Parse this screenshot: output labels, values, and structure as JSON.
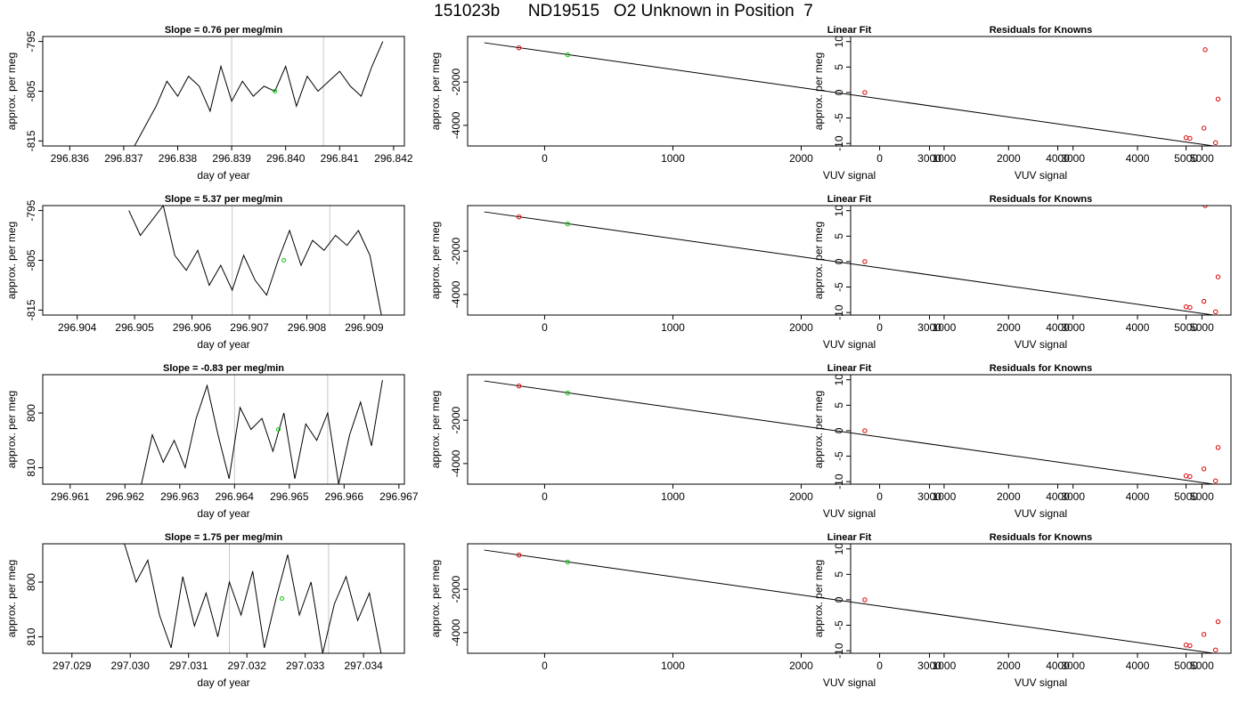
{
  "figure": {
    "title": "151023b      ND19515   O2 Unknown in Position  7"
  },
  "chart_data": [
    {
      "type": "line",
      "title": "Slope =  0.76  per meg/min",
      "xlabel": "day of year",
      "ylabel": "approx. per meg",
      "xlim": [
        296.8355,
        296.8422
      ],
      "ylim": [
        -816,
        -794
      ],
      "xticks": [
        "296.836",
        "296.837",
        "296.838",
        "296.839",
        "296.840",
        "296.841",
        "296.842"
      ],
      "yticks": [
        "-795",
        "-805",
        "-815"
      ],
      "vlines": [
        296.839,
        296.8407
      ],
      "marker": [
        296.8398,
        -805.0
      ],
      "series": [
        {
          "x": [
            296.8372,
            296.8374,
            296.8376,
            296.8378,
            296.838,
            296.8382,
            296.8384,
            296.8386,
            296.8388,
            296.839,
            296.8392,
            296.8394,
            296.8396,
            296.8398,
            296.84,
            296.8402,
            296.8404,
            296.8406,
            296.8408,
            296.841,
            296.8412,
            296.8414,
            296.8416,
            296.8418
          ],
          "y": [
            -816,
            -812,
            -808,
            -803,
            -806,
            -802,
            -804,
            -809,
            -800,
            -807,
            -803,
            -806,
            -804,
            -805,
            -800,
            -808,
            -802,
            -805,
            -803,
            -801,
            -804,
            -806,
            -800,
            -795
          ]
        }
      ]
    },
    {
      "type": "scatter",
      "title": "Linear Fit",
      "xlabel": "VUV signal",
      "ylabel": "approx. per meg",
      "xlim": [
        -600,
        5350
      ],
      "ylim": [
        -4950,
        100
      ],
      "xticks": [
        "0",
        "1000",
        "2000",
        "3000",
        "4000",
        "5000"
      ],
      "yticks": [
        "-2000",
        "-4000"
      ],
      "line": [
        [
          -470,
          -190
        ],
        [
          5250,
          -4980
        ]
      ],
      "points": [
        [
          -200,
          -420,
          "red"
        ],
        [
          180,
          -745,
          "green"
        ],
        [
          5000,
          -4570,
          "red"
        ],
        [
          5030,
          -4600,
          "red"
        ],
        [
          5230,
          -4800,
          "red"
        ]
      ]
    },
    {
      "type": "scatter",
      "title": "Residuals for Knowns",
      "xlabel": "VUV signal",
      "ylabel": "approx. per meg",
      "xlim": [
        -450,
        5450
      ],
      "ylim": [
        -10.5,
        11
      ],
      "xticks": [
        "0",
        "1000",
        "2000",
        "3000",
        "4000",
        "5000"
      ],
      "yticks": [
        "-10",
        "-5",
        "0",
        "5",
        "10"
      ],
      "points": [
        [
          -230,
          0.0
        ],
        [
          5030,
          -7.0
        ],
        [
          5050,
          8.4
        ],
        [
          5250,
          -1.3
        ]
      ]
    },
    {
      "type": "line",
      "title": "Slope =  5.37  per meg/min",
      "xlabel": "day of year",
      "ylabel": "approx. per meg",
      "xlim": [
        296.9034,
        296.9097
      ],
      "ylim": [
        -816,
        -794
      ],
      "xticks": [
        "296.904",
        "296.905",
        "296.906",
        "296.907",
        "296.908",
        "296.909"
      ],
      "yticks": [
        "-795",
        "-805",
        "-815"
      ],
      "vlines": [
        296.9067,
        296.9084
      ],
      "marker": [
        296.9076,
        -805.0
      ],
      "series": [
        {
          "x": [
            296.9049,
            296.9051,
            296.9053,
            296.9055,
            296.9057,
            296.9059,
            296.9061,
            296.9063,
            296.9065,
            296.9067,
            296.9069,
            296.9071,
            296.9073,
            296.9075,
            296.9077,
            296.9079,
            296.9081,
            296.9083,
            296.9085,
            296.9087,
            296.9089,
            296.9091,
            296.9093
          ],
          "y": [
            -795,
            -800,
            -797,
            -794,
            -804,
            -807,
            -803,
            -810,
            -806,
            -811,
            -804,
            -809,
            -812,
            -805,
            -799,
            -806,
            -801,
            -803,
            -800,
            -802,
            -799,
            -804,
            -816
          ]
        }
      ]
    },
    {
      "type": "scatter",
      "title": "Linear Fit",
      "xlabel": "VUV signal",
      "ylabel": "approx. per meg",
      "xlim": [
        -600,
        5350
      ],
      "ylim": [
        -4950,
        100
      ],
      "xticks": [
        "0",
        "1000",
        "2000",
        "3000",
        "4000",
        "5000"
      ],
      "yticks": [
        "-2000",
        "-4000"
      ],
      "line": [
        [
          -470,
          -190
        ],
        [
          5250,
          -4980
        ]
      ],
      "points": [
        [
          -200,
          -420,
          "red"
        ],
        [
          180,
          -745,
          "green"
        ],
        [
          5000,
          -4570,
          "red"
        ],
        [
          5030,
          -4600,
          "red"
        ],
        [
          5230,
          -4800,
          "red"
        ]
      ]
    },
    {
      "type": "scatter",
      "title": "Residuals for Knowns",
      "xlabel": "VUV signal",
      "ylabel": "approx. per meg",
      "xlim": [
        -450,
        5450
      ],
      "ylim": [
        -10.5,
        11
      ],
      "xticks": [
        "0",
        "1000",
        "2000",
        "3000",
        "4000",
        "5000"
      ],
      "yticks": [
        "-10",
        "-5",
        "0",
        "5",
        "10"
      ],
      "points": [
        [
          -230,
          0.0
        ],
        [
          5030,
          -7.8
        ],
        [
          5050,
          11.0
        ],
        [
          5250,
          -3.0
        ]
      ]
    },
    {
      "type": "line",
      "title": "Slope =  -0.83  per meg/min",
      "xlabel": "day of year",
      "ylabel": "approx. per meg",
      "xlim": [
        296.9605,
        296.9671
      ],
      "ylim": [
        -813,
        -793
      ],
      "xticks": [
        "296.961",
        "296.962",
        "296.963",
        "296.964",
        "296.965",
        "296.966",
        "296.967"
      ],
      "yticks": [
        "800",
        "810"
      ],
      "vlines": [
        296.964,
        296.9657
      ],
      "marker": [
        296.9648,
        -803.0
      ],
      "series": [
        {
          "x": [
            296.9623,
            296.9625,
            296.9627,
            296.9629,
            296.9631,
            296.9633,
            296.9635,
            296.9637,
            296.9639,
            296.9641,
            296.9643,
            296.9645,
            296.9647,
            296.9649,
            296.9651,
            296.9653,
            296.9655,
            296.9657,
            296.9659,
            296.9661,
            296.9663,
            296.9665,
            296.9667
          ],
          "y": [
            -813,
            -804,
            -809,
            -805,
            -810,
            -801,
            -795,
            -804,
            -812,
            -799,
            -803,
            -801,
            -807,
            -800,
            -812,
            -802,
            -805,
            -800,
            -813,
            -804,
            -798,
            -806,
            -794
          ]
        }
      ]
    },
    {
      "type": "scatter",
      "title": "Linear Fit",
      "xlabel": "VUV signal",
      "ylabel": "approx. per meg",
      "xlim": [
        -600,
        5350
      ],
      "ylim": [
        -4950,
        100
      ],
      "xticks": [
        "0",
        "1000",
        "2000",
        "3000",
        "4000",
        "5000"
      ],
      "yticks": [
        "-2000",
        "-4000"
      ],
      "line": [
        [
          -470,
          -190
        ],
        [
          5250,
          -4980
        ]
      ],
      "points": [
        [
          -200,
          -420,
          "red"
        ],
        [
          180,
          -745,
          "green"
        ],
        [
          5000,
          -4570,
          "red"
        ],
        [
          5030,
          -4600,
          "red"
        ],
        [
          5230,
          -4800,
          "red"
        ]
      ]
    },
    {
      "type": "scatter",
      "title": "Residuals for Knowns",
      "xlabel": "VUV signal",
      "ylabel": "approx. per meg",
      "xlim": [
        -450,
        5450
      ],
      "ylim": [
        -10.5,
        11
      ],
      "xticks": [
        "0",
        "1000",
        "2000",
        "3000",
        "4000",
        "5000"
      ],
      "yticks": [
        "-10",
        "-5",
        "0",
        "5",
        "10"
      ],
      "points": [
        [
          -230,
          0.0
        ],
        [
          5030,
          -7.5
        ],
        [
          5250,
          -3.3
        ]
      ]
    },
    {
      "type": "line",
      "title": "Slope =  1.75  per meg/min",
      "xlabel": "day of year",
      "ylabel": "approx. per meg",
      "xlim": [
        297.0285,
        297.0347
      ],
      "ylim": [
        -813,
        -793
      ],
      "xticks": [
        "297.029",
        "297.030",
        "297.031",
        "297.032",
        "297.033",
        "297.034"
      ],
      "yticks": [
        "800",
        "810"
      ],
      "vlines": [
        297.0317,
        297.0334
      ],
      "marker": [
        297.0326,
        -803.0
      ],
      "series": [
        {
          "x": [
            297.0299,
            297.0301,
            297.0303,
            297.0305,
            297.0307,
            297.0309,
            297.0311,
            297.0313,
            297.0315,
            297.0317,
            297.0319,
            297.0321,
            297.0323,
            297.0325,
            297.0327,
            297.0329,
            297.0331,
            297.0333,
            297.0335,
            297.0337,
            297.0339,
            297.0341,
            297.0343
          ],
          "y": [
            -793,
            -800,
            -796,
            -806,
            -812,
            -799,
            -808,
            -802,
            -810,
            -800,
            -806,
            -798,
            -812,
            -803,
            -795,
            -806,
            -800,
            -813,
            -804,
            -799,
            -807,
            -802,
            -813
          ]
        }
      ]
    },
    {
      "type": "scatter",
      "title": "Linear Fit",
      "xlabel": "VUV signal",
      "ylabel": "approx. per meg",
      "xlim": [
        -600,
        5350
      ],
      "ylim": [
        -4950,
        100
      ],
      "xticks": [
        "0",
        "1000",
        "2000",
        "3000",
        "4000",
        "5000"
      ],
      "yticks": [
        "-2000",
        "-4000"
      ],
      "line": [
        [
          -470,
          -190
        ],
        [
          5250,
          -4980
        ]
      ],
      "points": [
        [
          -200,
          -420,
          "red"
        ],
        [
          180,
          -745,
          "green"
        ],
        [
          5000,
          -4570,
          "red"
        ],
        [
          5030,
          -4600,
          "red"
        ],
        [
          5230,
          -4800,
          "red"
        ]
      ]
    },
    {
      "type": "scatter",
      "title": "Residuals for Knowns",
      "xlabel": "VUV signal",
      "ylabel": "approx. per meg",
      "xlim": [
        -450,
        5450
      ],
      "ylim": [
        -10.5,
        11
      ],
      "xticks": [
        "0",
        "1000",
        "2000",
        "3000",
        "4000",
        "5000"
      ],
      "yticks": [
        "-10",
        "-5",
        "0",
        "5",
        "10"
      ],
      "points": [
        [
          -230,
          0.0
        ],
        [
          5030,
          -6.8
        ],
        [
          5250,
          -4.3
        ]
      ]
    }
  ]
}
